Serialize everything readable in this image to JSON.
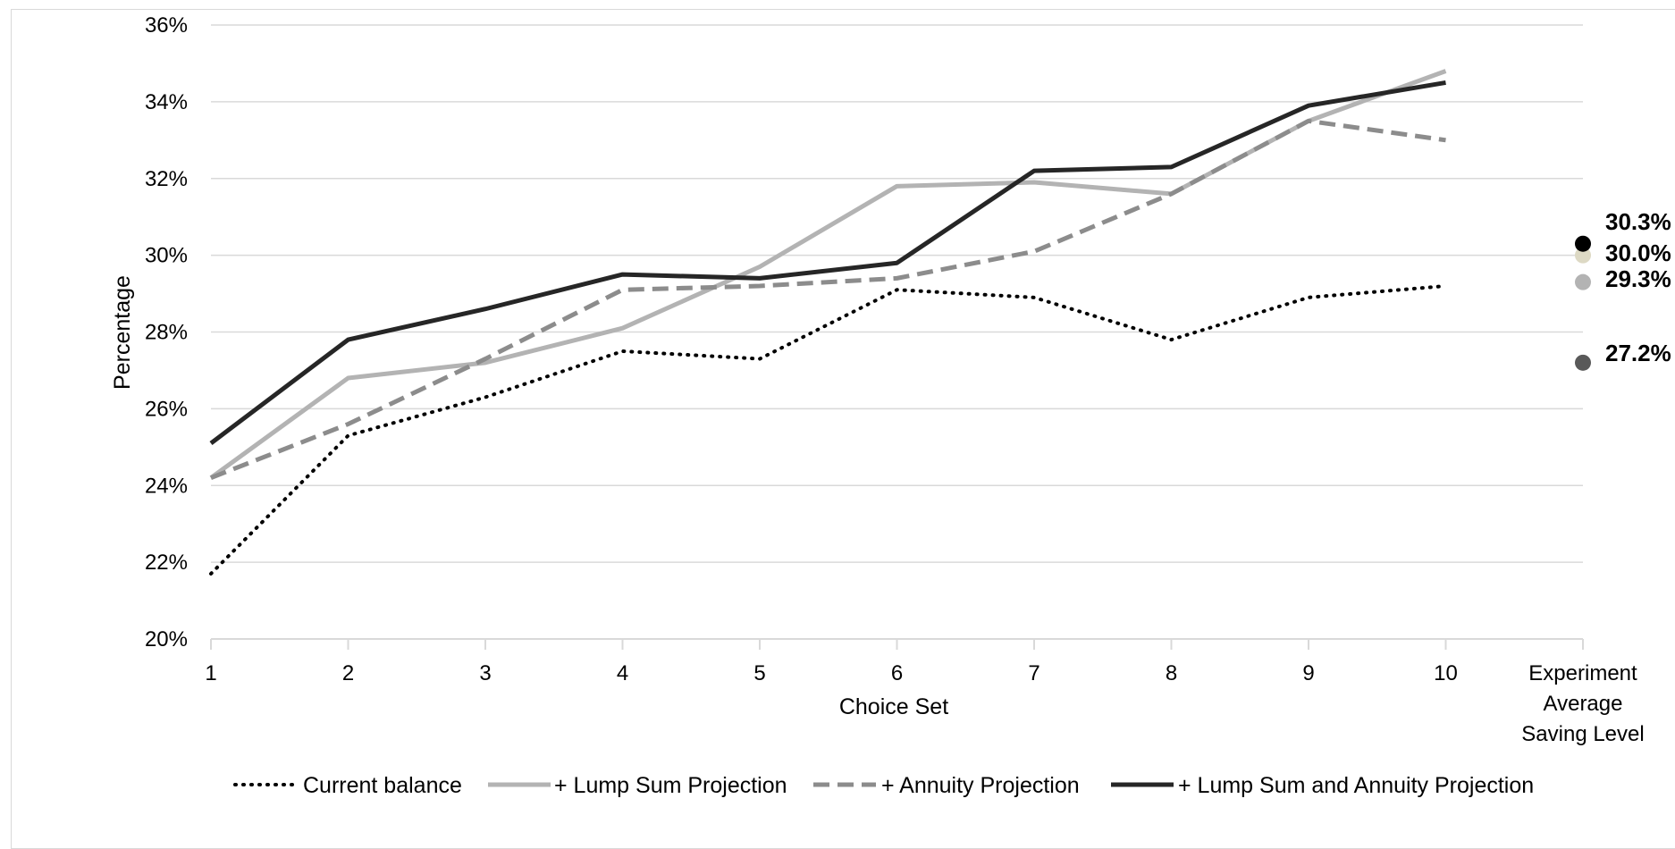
{
  "chart_data": {
    "type": "line",
    "xlabel": "Choice Set",
    "ylabel": "Percentage",
    "categories": [
      "1",
      "2",
      "3",
      "4",
      "5",
      "6",
      "7",
      "8",
      "9",
      "10"
    ],
    "extra_category": [
      "Experiment",
      "Average",
      "Saving Level"
    ],
    "ylim": [
      20,
      36
    ],
    "y_ticks": [
      "20%",
      "22%",
      "24%",
      "26%",
      "28%",
      "30%",
      "32%",
      "34%",
      "36%"
    ],
    "grid": true,
    "legend_position": "bottom",
    "series": [
      {
        "name": "Current balance",
        "color": "#000000",
        "style": "dotted",
        "values": [
          21.7,
          25.3,
          26.3,
          27.5,
          27.3,
          29.1,
          28.9,
          27.8,
          28.9,
          29.2
        ],
        "average": 27.2,
        "average_label": "27.2%",
        "average_marker_color": "#595959"
      },
      {
        "name": "+ Lump Sum Projection",
        "color": "#b3b3b3",
        "style": "solid",
        "values": [
          24.2,
          26.8,
          27.2,
          28.1,
          29.7,
          31.8,
          31.9,
          31.6,
          33.5,
          34.8
        ],
        "average": 30.0,
        "average_label": "30.0%",
        "average_marker_color": "#ddd9c4"
      },
      {
        "name": "+ Annuity Projection",
        "color": "#8c8c8c",
        "style": "dashed",
        "values": [
          24.2,
          25.6,
          27.3,
          29.1,
          29.2,
          29.4,
          30.1,
          31.6,
          33.5,
          33.0
        ],
        "average": 29.3,
        "average_label": "29.3%",
        "average_marker_color": "#b3b3b3"
      },
      {
        "name": "+ Lump Sum and Annuity Projection",
        "color": "#262626",
        "style": "solid",
        "values": [
          25.1,
          27.8,
          28.6,
          29.5,
          29.4,
          29.8,
          32.2,
          32.3,
          33.9,
          34.5
        ],
        "average": 30.3,
        "average_label": "30.3%",
        "average_marker_color": "#000000"
      }
    ]
  }
}
